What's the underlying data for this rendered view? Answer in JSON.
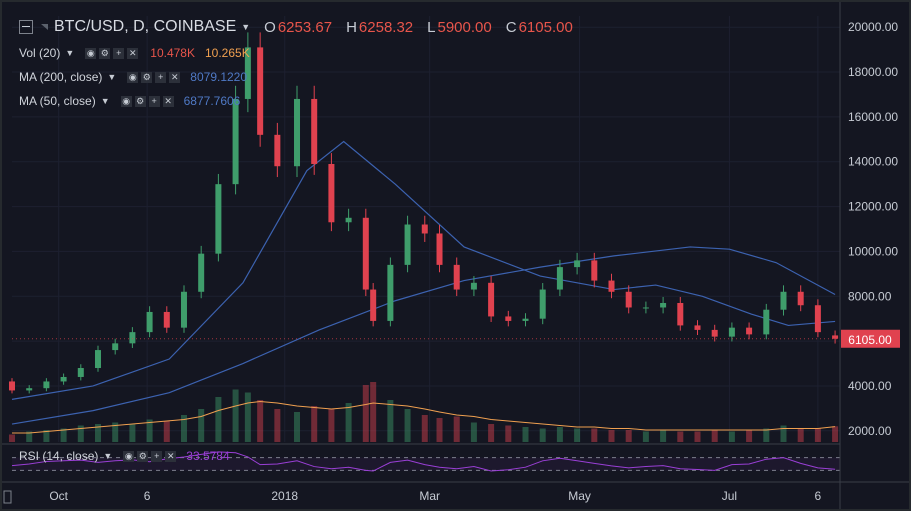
{
  "header": {
    "symbol": "BTC/USD, D, COINBASE",
    "ohlc": [
      {
        "label": "O",
        "value": "6253.67"
      },
      {
        "label": "H",
        "value": "6258.32"
      },
      {
        "label": "L",
        "value": "5900.00"
      },
      {
        "label": "C",
        "value": "6105.00"
      }
    ]
  },
  "indicators": [
    {
      "label": "Vol (20)",
      "values": [
        "10.478K",
        "10.265K"
      ],
      "colors": [
        "#e8554b",
        "#f0a050"
      ]
    },
    {
      "label": "MA (200, close)",
      "values": [
        "8079.1220"
      ],
      "colors": [
        "#4f79c5"
      ]
    },
    {
      "label": "MA (50, close)",
      "values": [
        "6877.7606"
      ],
      "colors": [
        "#4f79c5"
      ]
    }
  ],
  "rsi": {
    "label": "RSI (14, close)",
    "value": "33.5784",
    "color": "#9a3fd6"
  },
  "price_badge": "6105.00",
  "colors": {
    "background": "#141621",
    "up": "#3f9d6b",
    "down": "#e0424f",
    "ma": "#3c62b0",
    "vol_ma": "#f0a050",
    "rsi": "#9a3fd6",
    "text": "#c6cbd3",
    "badge": "#e0424f"
  },
  "icons": [
    "collapse-icon",
    "symbol-dropdown-icon",
    "eye-icon",
    "gear-icon",
    "plus-icon",
    "close-icon"
  ],
  "chart_data": {
    "type": "candlestick",
    "title": "BTC/USD, D, COINBASE",
    "y_ticks": [
      2000,
      4000,
      6000,
      8000,
      10000,
      12000,
      14000,
      16000,
      18000,
      20000
    ],
    "y_tick_labels": [
      "2000.00",
      "4000.00",
      "6000.00",
      "8000.00",
      "10000.00",
      "12000.00",
      "14000.00",
      "16000.00",
      "18000.00",
      "20000.00"
    ],
    "ylim": [
      1500,
      20500
    ],
    "x_ticks": [
      {
        "date": "2017-10-01",
        "label": "Oct"
      },
      {
        "date": "2017-11-06",
        "label": "6"
      },
      {
        "date": "2018-01-01",
        "label": "2018"
      },
      {
        "date": "2018-03-01",
        "label": "Mar"
      },
      {
        "date": "2018-05-01",
        "label": "May"
      },
      {
        "date": "2018-07-01",
        "label": "Jul"
      },
      {
        "date": "2018-08-06",
        "label": "6"
      }
    ],
    "xlim": [
      "2017-09-12",
      "2018-08-15"
    ],
    "series": [
      {
        "name": "Close",
        "type": "candlestick",
        "x": [
          "2017-09-12",
          "2017-09-19",
          "2017-09-26",
          "2017-10-03",
          "2017-10-10",
          "2017-10-17",
          "2017-10-24",
          "2017-10-31",
          "2017-11-07",
          "2017-11-14",
          "2017-11-21",
          "2017-11-28",
          "2017-12-05",
          "2017-12-12",
          "2017-12-17",
          "2017-12-22",
          "2017-12-29",
          "2018-01-06",
          "2018-01-13",
          "2018-01-20",
          "2018-01-27",
          "2018-02-03",
          "2018-02-06",
          "2018-02-13",
          "2018-02-20",
          "2018-02-27",
          "2018-03-05",
          "2018-03-12",
          "2018-03-19",
          "2018-03-26",
          "2018-04-02",
          "2018-04-09",
          "2018-04-16",
          "2018-04-23",
          "2018-04-30",
          "2018-05-07",
          "2018-05-14",
          "2018-05-21",
          "2018-05-28",
          "2018-06-04",
          "2018-06-11",
          "2018-06-18",
          "2018-06-25",
          "2018-07-02",
          "2018-07-09",
          "2018-07-16",
          "2018-07-23",
          "2018-07-30",
          "2018-08-06",
          "2018-08-13"
        ],
        "y": [
          3800,
          3900,
          4200,
          4400,
          4800,
          5600,
          5900,
          6400,
          7300,
          6600,
          8200,
          9900,
          13000,
          16800,
          19100,
          15200,
          13800,
          16800,
          13900,
          11300,
          11500,
          8300,
          6900,
          9400,
          11200,
          10800,
          9400,
          8300,
          8600,
          7100,
          6900,
          7000,
          8300,
          9300,
          9600,
          8700,
          8200,
          7500,
          7500,
          7700,
          6700,
          6500,
          6200,
          6600,
          6300,
          7400,
          8200,
          7600,
          6400,
          6105
        ],
        "open": [
          4200,
          3800,
          3900,
          4200,
          4400,
          4800,
          5600,
          5900,
          6400,
          7300,
          6600,
          8200,
          9900,
          13000,
          16800,
          19100,
          15200,
          13800,
          16800,
          13900,
          11300,
          11500,
          8300,
          6900,
          9400,
          11200,
          10800,
          9400,
          8300,
          8600,
          7100,
          6900,
          7000,
          8300,
          9300,
          9600,
          8700,
          8200,
          7500,
          7500,
          7700,
          6700,
          6500,
          6200,
          6600,
          6300,
          7400,
          8200,
          7600,
          6253.67
        ]
      },
      {
        "name": "MA (50, close)",
        "type": "line",
        "x": [
          "2017-09-12",
          "2017-10-15",
          "2017-11-15",
          "2017-12-15",
          "2018-01-10",
          "2018-01-25",
          "2018-02-15",
          "2018-03-15",
          "2018-04-15",
          "2018-05-15",
          "2018-06-01",
          "2018-06-20",
          "2018-07-10",
          "2018-07-25",
          "2018-08-13"
        ],
        "y": [
          3400,
          4000,
          5200,
          8600,
          13600,
          14900,
          13000,
          10200,
          8900,
          8300,
          8500,
          8000,
          7200,
          6700,
          6877.76
        ]
      },
      {
        "name": "MA (200, close)",
        "type": "line",
        "x": [
          "2017-09-12",
          "2017-10-15",
          "2017-11-15",
          "2017-12-15",
          "2018-01-15",
          "2018-02-15",
          "2018-03-15",
          "2018-04-15",
          "2018-05-15",
          "2018-06-15",
          "2018-07-01",
          "2018-07-20",
          "2018-08-13"
        ],
        "y": [
          2300,
          2900,
          3700,
          5000,
          6500,
          7800,
          8700,
          9300,
          9800,
          10200,
          10100,
          9500,
          8079.12
        ]
      },
      {
        "name": "Vol (20)",
        "type": "bar",
        "values_k": [
          5,
          7,
          8,
          9,
          11,
          12,
          13,
          12,
          15,
          14,
          18,
          22,
          30,
          35,
          33,
          28,
          22,
          20,
          24,
          22,
          26,
          38,
          40,
          28,
          22,
          18,
          16,
          17,
          13,
          12,
          11,
          10,
          9,
          10,
          9,
          9,
          8,
          8,
          7,
          8,
          7,
          7,
          8,
          7,
          8,
          9,
          11,
          9,
          9,
          10.478
        ]
      },
      {
        "name": "Vol MA",
        "type": "line",
        "values_k": [
          6,
          6,
          7,
          8,
          9,
          10,
          11,
          12,
          13,
          14,
          15,
          17,
          21,
          24,
          26,
          27,
          26,
          24,
          23,
          22,
          23,
          25,
          26,
          25,
          24,
          22,
          20,
          18,
          17,
          15,
          14,
          13,
          12,
          11,
          10,
          10,
          9,
          9,
          8,
          8,
          8,
          8,
          8,
          8,
          8,
          8,
          9,
          9,
          9,
          10.265
        ]
      },
      {
        "name": "RSI (14, close)",
        "type": "line",
        "ylim": [
          0,
          100
        ],
        "levels": [
          30,
          70
        ],
        "values": [
          45,
          50,
          58,
          60,
          62,
          55,
          60,
          63,
          57,
          66,
          72,
          80,
          88,
          85,
          72,
          48,
          50,
          60,
          42,
          35,
          40,
          30,
          28,
          55,
          62,
          48,
          40,
          35,
          42,
          28,
          32,
          40,
          60,
          68,
          60,
          52,
          44,
          38,
          42,
          45,
          35,
          33,
          30,
          48,
          50,
          65,
          70,
          52,
          38,
          33.58
        ]
      }
    ]
  }
}
